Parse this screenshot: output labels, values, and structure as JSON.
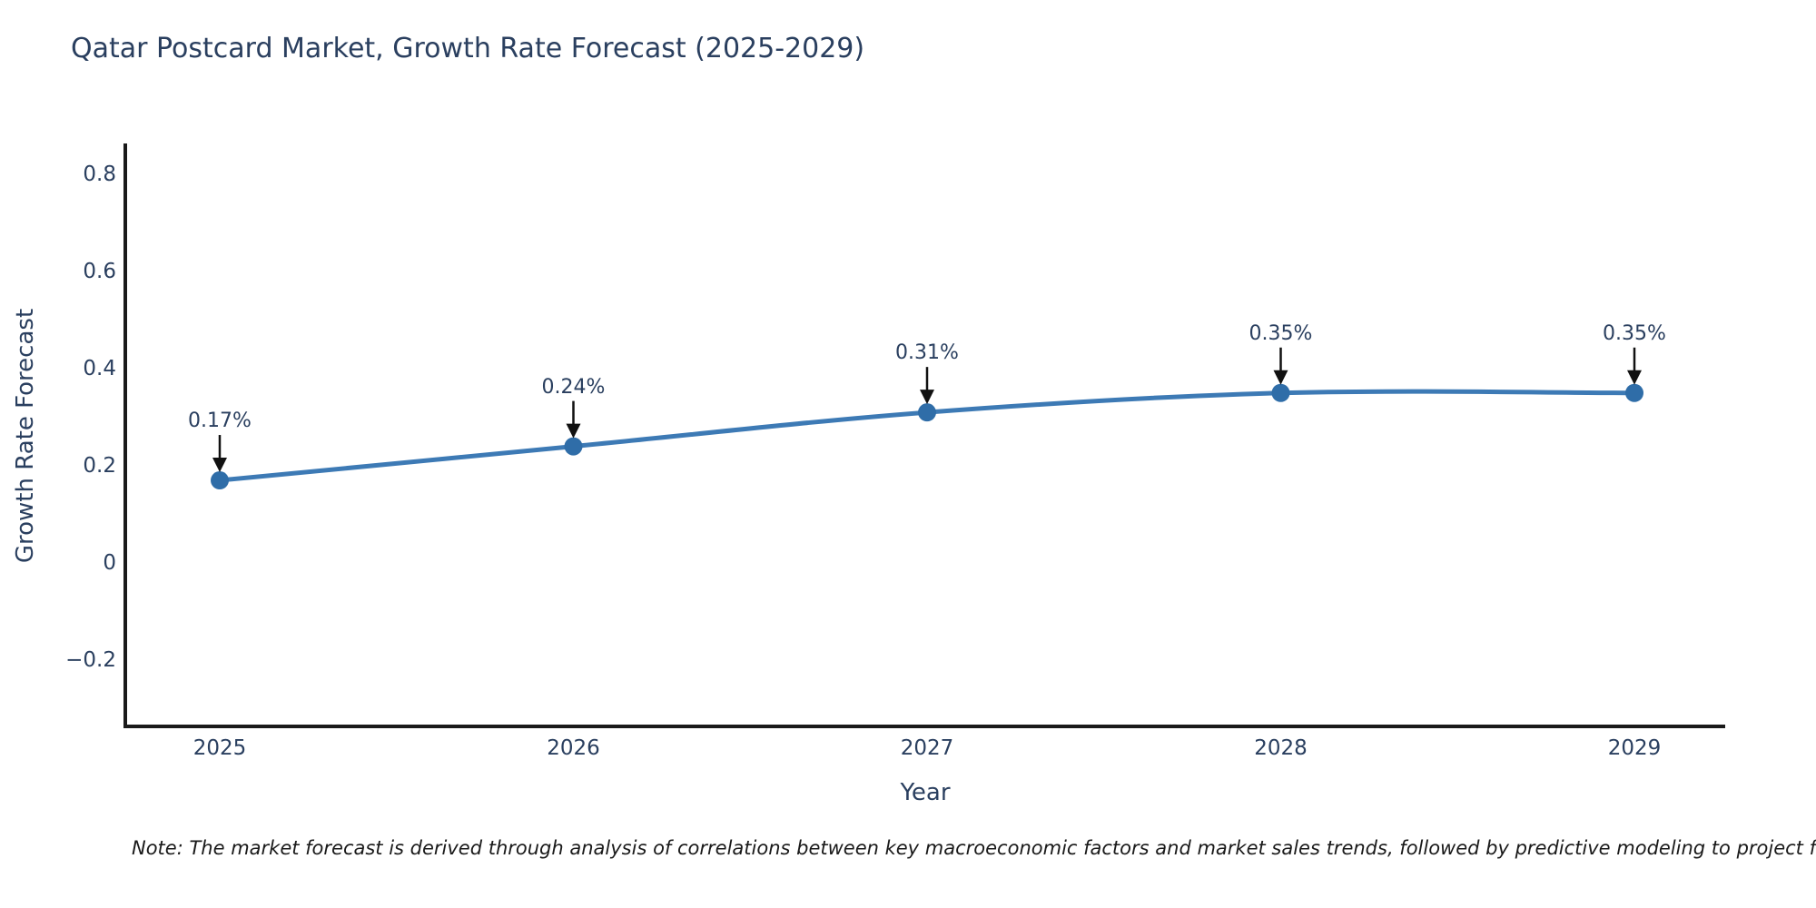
{
  "note": {
    "text": "Note: The market forecast is derived through analysis of correlations between key macroeconomic factors and market sales trends, followed by predictive modeling to project future sales"
  },
  "chart_data": {
    "type": "line",
    "title": "Qatar Postcard Market, Growth Rate Forecast (2025-2029)",
    "xlabel": "Year",
    "ylabel": "Growth Rate Forecast",
    "categories": [
      "2025",
      "2026",
      "2027",
      "2028",
      "2029"
    ],
    "series": [
      {
        "name": "Growth Rate Forecast",
        "values": [
          0.17,
          0.24,
          0.31,
          0.35,
          0.35
        ],
        "point_labels": [
          "0.17%",
          "0.24%",
          "0.31%",
          "0.35%",
          "0.35%"
        ]
      }
    ],
    "y_ticks": [
      -0.2,
      0,
      0.2,
      0.4,
      0.6,
      0.8
    ],
    "ylim": [
      -0.34,
      0.86
    ],
    "grid": false,
    "legend_position": "none",
    "line_style": "spline",
    "marker": "circle",
    "colors": {
      "line": "#3d7ab5",
      "marker": "#2f6da8",
      "annotation_arrow": "#111111",
      "text": "#2a3f5f",
      "axis": "#1a1a1a",
      "background": "#ffffff"
    }
  }
}
